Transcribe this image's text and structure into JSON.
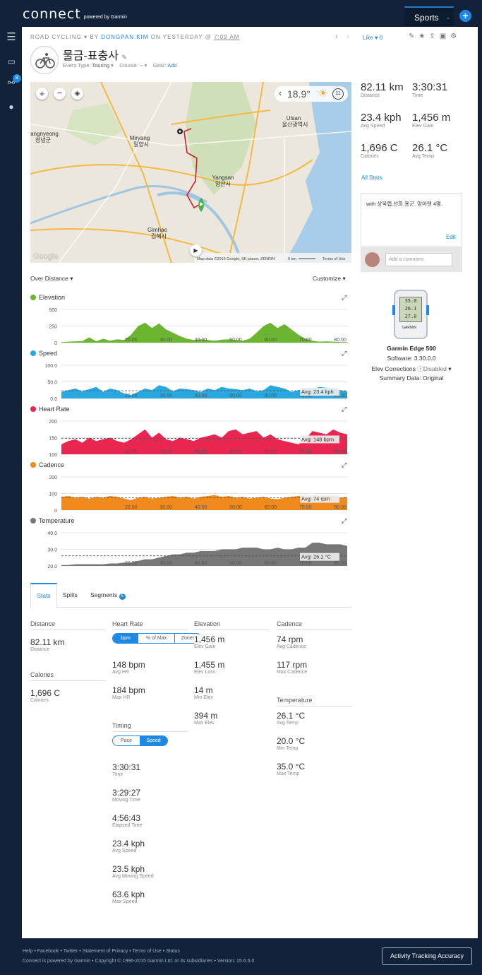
{
  "app": {
    "logo": "connect",
    "logo_sub": "powered by Garmin",
    "sports": "Sports",
    "plus": "+"
  },
  "nav": {
    "badge": "8"
  },
  "activity": {
    "type": "ROAD CYCLING",
    "by": "BY",
    "user": "DONGPAN.KIM",
    "on": "ON YESTERDAY @",
    "time": "7:09 AM",
    "title": "물금-표충사",
    "event_label": "Event Type:",
    "event_value": "Touring",
    "course_label": "Course:",
    "course_value": "--",
    "gear_label": "Gear:",
    "gear_value": "Add",
    "like": "Like",
    "like_count": "0"
  },
  "map": {
    "weather_temp": "18.9°",
    "wind": "11",
    "labels": [
      "angnyeong",
      "창녕군",
      "Miryang",
      "밀양시",
      "Ulsan",
      "울산광역시",
      "Yangsan",
      "양산시",
      "Gimhae",
      "김해시"
    ],
    "copyright": "Map data ©2015 Google, SK planet, ZENRIN",
    "scale": "5 km",
    "terms": "Terms of Use",
    "google": "Google"
  },
  "summary": {
    "items": [
      {
        "value": "82.11 km",
        "label": "Distance"
      },
      {
        "value": "3:30:31",
        "label": "Time"
      },
      {
        "value": "23.4 kph",
        "label": "Avg Speed"
      },
      {
        "value": "1,456 m",
        "label": "Elev Gain"
      },
      {
        "value": "1,696 C",
        "label": "Calories"
      },
      {
        "value": "26.1 °C",
        "label": "Avg Temp"
      }
    ],
    "all_stats": "All Stats"
  },
  "comment": {
    "text": "with 상욱랩.선희.용군. 앙아맨 4명.",
    "edit": "Edit",
    "placeholder": "Add a comment."
  },
  "device": {
    "name": "Garmin Edge 500",
    "software": "Software: 3.30.0.0",
    "elev_label": "Elev Corrections",
    "elev_value": "Disabled",
    "summary": "Summary Data: Original",
    "screen": [
      "35.0",
      "26.1",
      "27.0"
    ],
    "brand": "GARMIN"
  },
  "charts": {
    "over": "Over Distance",
    "customize": "Customize"
  },
  "chart_data": [
    {
      "type": "area",
      "title": "Elevation",
      "color": "#6bb533",
      "ylim": [
        0,
        500
      ],
      "yticks": [
        "500",
        "250",
        "0"
      ],
      "xticks": [
        "20.00",
        "30.00",
        "40.00",
        "50.00",
        "60.00",
        "70.00",
        "80.00"
      ],
      "x": [
        0,
        2,
        4,
        6,
        8,
        10,
        12,
        14,
        16,
        18,
        20,
        22,
        24,
        26,
        28,
        30,
        32,
        34,
        36,
        38,
        40,
        42,
        44,
        46,
        48,
        50,
        52,
        54,
        56,
        58,
        60,
        62,
        64,
        66,
        68,
        70,
        72,
        74,
        76,
        78,
        80,
        82
      ],
      "y": [
        10,
        15,
        20,
        25,
        80,
        20,
        60,
        30,
        50,
        40,
        120,
        250,
        300,
        220,
        290,
        200,
        150,
        100,
        60,
        40,
        50,
        40,
        30,
        45,
        50,
        40,
        30,
        60,
        150,
        250,
        300,
        220,
        280,
        200,
        120,
        60,
        30,
        15,
        20,
        15,
        10,
        10
      ]
    },
    {
      "type": "area",
      "title": "Speed",
      "color": "#29a8e0",
      "ylim": [
        0,
        100
      ],
      "yticks": [
        "100.0",
        "50.0",
        "0.0"
      ],
      "avg_label": "Avg: 23.4 kph",
      "avg": 23.4,
      "xticks": [
        "20.00",
        "30.00",
        "40.00",
        "50.00",
        "60.00",
        "70.00",
        "80.00"
      ],
      "x": [
        0,
        2,
        4,
        6,
        8,
        10,
        12,
        14,
        16,
        18,
        20,
        22,
        24,
        26,
        28,
        30,
        32,
        34,
        36,
        38,
        40,
        42,
        44,
        46,
        48,
        50,
        52,
        54,
        56,
        58,
        60,
        62,
        64,
        66,
        68,
        70,
        72,
        74,
        76,
        78,
        80,
        82
      ],
      "y": [
        20,
        25,
        30,
        22,
        28,
        35,
        20,
        30,
        25,
        15,
        10,
        20,
        30,
        25,
        40,
        35,
        22,
        30,
        28,
        25,
        20,
        30,
        25,
        35,
        30,
        28,
        25,
        30,
        22,
        25,
        40,
        35,
        30,
        20,
        25,
        30,
        28,
        35,
        32,
        30,
        25,
        22
      ]
    },
    {
      "type": "area",
      "title": "Heart Rate",
      "color": "#e8264f",
      "ylim": [
        100,
        200
      ],
      "yticks": [
        "200",
        "150",
        "100"
      ],
      "avg_label": "Avg: 148 bpm",
      "avg": 148,
      "xticks": [
        "20.00",
        "30.00",
        "40.00",
        "50.00",
        "60.00",
        "70.00",
        "80.00"
      ],
      "x": [
        0,
        2,
        4,
        6,
        8,
        10,
        12,
        14,
        16,
        18,
        20,
        22,
        24,
        26,
        28,
        30,
        32,
        34,
        36,
        38,
        40,
        42,
        44,
        46,
        48,
        50,
        52,
        54,
        56,
        58,
        60,
        62,
        64,
        66,
        68,
        70,
        72,
        74,
        76,
        78,
        80,
        82
      ],
      "y": [
        130,
        140,
        145,
        135,
        150,
        140,
        145,
        150,
        140,
        135,
        145,
        160,
        175,
        150,
        165,
        145,
        140,
        150,
        145,
        140,
        150,
        155,
        160,
        150,
        170,
        175,
        160,
        165,
        170,
        150,
        160,
        145,
        140,
        135,
        130,
        145,
        170,
        165,
        160,
        175,
        165,
        160
      ]
    },
    {
      "type": "area",
      "title": "Cadence",
      "color": "#f08a1c",
      "ylim": [
        0,
        200
      ],
      "yticks": [
        "200",
        "100",
        "0"
      ],
      "avg_label": "Avg: 74 rpm",
      "avg": 74,
      "xticks": [
        "20.00",
        "30.00",
        "40.00",
        "50.00",
        "60.00",
        "70.00",
        "80.00"
      ],
      "x": [
        0,
        2,
        4,
        6,
        8,
        10,
        12,
        14,
        16,
        18,
        20,
        22,
        24,
        26,
        28,
        30,
        32,
        34,
        36,
        38,
        40,
        42,
        44,
        46,
        48,
        50,
        52,
        54,
        56,
        58,
        60,
        62,
        64,
        66,
        68,
        70,
        72,
        74,
        76,
        78,
        80,
        82
      ],
      "y": [
        80,
        85,
        75,
        80,
        70,
        80,
        75,
        85,
        80,
        70,
        60,
        75,
        80,
        70,
        75,
        80,
        85,
        75,
        80,
        70,
        80,
        85,
        90,
        80,
        85,
        75,
        80,
        70,
        75,
        80,
        70,
        65,
        75,
        80,
        85,
        80,
        75,
        80,
        85,
        80,
        75,
        80
      ]
    },
    {
      "type": "area",
      "title": "Temperature",
      "color": "#777777",
      "ylim": [
        20,
        40
      ],
      "yticks": [
        "40.0",
        "30.0",
        "20.0"
      ],
      "avg_label": "Avg: 26.1 °C",
      "avg": 26.1,
      "xticks": [
        "20.00",
        "30.00",
        "40.00",
        "50.00",
        "60.00",
        "70.00",
        "80.00"
      ],
      "x": [
        0,
        2,
        4,
        6,
        8,
        10,
        12,
        14,
        16,
        18,
        20,
        22,
        24,
        26,
        28,
        30,
        32,
        34,
        36,
        38,
        40,
        42,
        44,
        46,
        48,
        50,
        52,
        54,
        56,
        58,
        60,
        62,
        64,
        66,
        68,
        70,
        72,
        74,
        76,
        78,
        80,
        82
      ],
      "y": [
        20.5,
        20.5,
        21,
        21,
        21,
        21,
        21,
        21.5,
        21.5,
        22,
        22,
        23,
        24,
        24,
        25,
        26,
        27,
        27,
        28,
        28,
        29,
        29,
        29,
        30,
        30,
        30,
        31,
        31,
        31,
        30,
        30,
        31,
        30,
        30,
        31,
        31,
        34,
        34,
        33,
        33,
        33,
        32
      ]
    }
  ],
  "tabs": {
    "stats": "Stats",
    "splits": "Splits",
    "segments": "Segments",
    "segments_count": "5"
  },
  "stats": {
    "distance": {
      "head": "Distance",
      "value": "82.11 km",
      "label": "Distance"
    },
    "calories": {
      "head": "Calories",
      "value": "1,696 C",
      "label": "Calories"
    },
    "hr": {
      "head": "Heart Rate",
      "toggles": [
        "bpm",
        "% of Max",
        "Zones"
      ],
      "items": [
        {
          "value": "148 bpm",
          "label": "Avg HR"
        },
        {
          "value": "184 bpm",
          "label": "Max HR"
        }
      ]
    },
    "timing": {
      "head": "Timing",
      "toggles": [
        "Pace",
        "Speed"
      ],
      "items": [
        {
          "value": "3:30:31",
          "label": "Time"
        },
        {
          "value": "3:29:27",
          "label": "Moving Time"
        },
        {
          "value": "4:56:43",
          "label": "Elapsed Time"
        },
        {
          "value": "23.4 kph",
          "label": "Avg Speed"
        },
        {
          "value": "23.5 kph",
          "label": "Avg Moving Speed"
        },
        {
          "value": "63.6 kph",
          "label": "Max Speed"
        }
      ]
    },
    "elevation": {
      "head": "Elevation",
      "items": [
        {
          "value": "1,456 m",
          "label": "Elev Gain"
        },
        {
          "value": "1,455 m",
          "label": "Elev Loss"
        },
        {
          "value": "14 m",
          "label": "Min Elev"
        },
        {
          "value": "394 m",
          "label": "Max Elev"
        }
      ]
    },
    "cadence": {
      "head": "Cadence",
      "items": [
        {
          "value": "74 rpm",
          "label": "Avg Cadence"
        },
        {
          "value": "117 rpm",
          "label": "Max Cadence"
        }
      ]
    },
    "temperature": {
      "head": "Temperature",
      "items": [
        {
          "value": "26.1 °C",
          "label": "Avg Temp"
        },
        {
          "value": "20.0 °C",
          "label": "Min Temp"
        },
        {
          "value": "35.0 °C",
          "label": "Max Temp"
        }
      ]
    }
  },
  "footer": {
    "links": [
      "Help",
      "Facebook",
      "Twitter",
      "Statement of Privacy",
      "Terms of Use",
      "Status"
    ],
    "copyright": "Connect is powered by Garmin • Copyright © 1996-2015 Garmin Ltd. or its subsidiaries • Version: 15.6.5.0",
    "ata": "Activity Tracking Accuracy"
  }
}
